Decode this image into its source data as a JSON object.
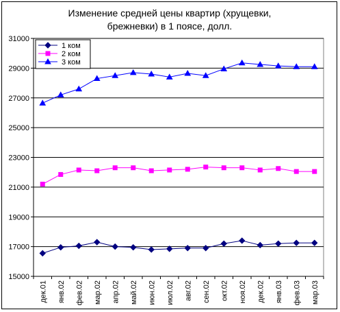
{
  "chart_data": {
    "type": "line",
    "title_lines": [
      "Изменение средней цены квартир (хрущевки,",
      "брежневки) в 1 поясе, долл."
    ],
    "categories": [
      "дек.01",
      "янв.02",
      "фев.02",
      "мар.02",
      "апр.02",
      "май.02",
      "июн.02",
      "июл.02",
      "авг.02",
      "сен.02",
      "окт.02",
      "ноя.02",
      "дек.02",
      "янв.03",
      "фев.03",
      "мар.03"
    ],
    "y_ticks": [
      "15000",
      "17000",
      "19000",
      "21000",
      "23000",
      "25000",
      "27000",
      "29000",
      "31000"
    ],
    "ylim": [
      15000,
      31000
    ],
    "grid": "horizontal",
    "legend_position": "top-left",
    "series": [
      {
        "name": "1 ком",
        "color": "#000080",
        "marker": "diamond",
        "values": [
          16550,
          16950,
          17050,
          17300,
          17000,
          16950,
          16800,
          16850,
          16900,
          16900,
          17200,
          17400,
          17100,
          17200,
          17250,
          17250
        ]
      },
      {
        "name": "2 ком",
        "color": "#ff00ff",
        "marker": "square",
        "values": [
          21200,
          21850,
          22150,
          22100,
          22300,
          22300,
          22100,
          22150,
          22200,
          22350,
          22300,
          22300,
          22150,
          22250,
          22050,
          22050
        ]
      },
      {
        "name": "3 ком",
        "color": "#0000ff",
        "marker": "triangle",
        "values": [
          26650,
          27200,
          27600,
          28300,
          28500,
          28700,
          28600,
          28400,
          28650,
          28500,
          28950,
          29350,
          29250,
          29150,
          29100,
          29100
        ]
      }
    ]
  }
}
